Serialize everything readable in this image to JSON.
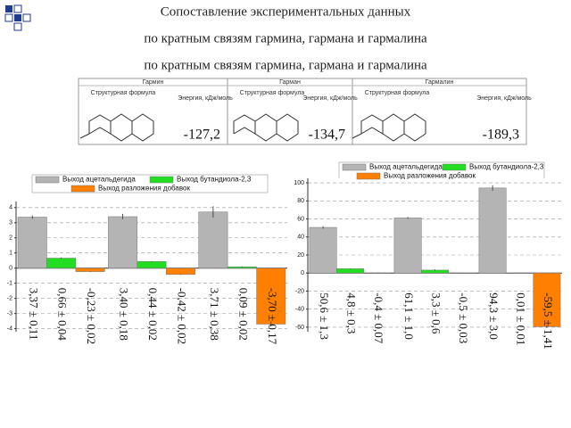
{
  "header": {
    "title": [
      "Сопоставление экспериментальных данных",
      "по кратным связям гармина, гармана и гармалина",
      "по кратным связям гармина, гармана и гармалина"
    ]
  },
  "table": {
    "columns": [
      {
        "name": "Гармин",
        "formula": "Структурная формула",
        "energy_label": "Энергия, кДж/моль",
        "energy": "-127,2"
      },
      {
        "name": "Гарман",
        "formula": "Структурная формула",
        "energy_label": "Энергия, кДж/моль",
        "energy": "-134,7"
      },
      {
        "name": "Гармалин",
        "formula": "Структурная формула",
        "energy_label": "Энергия, кДж/моль",
        "energy": "-189,3"
      }
    ]
  },
  "chart_data": [
    {
      "type": "bar",
      "categories": [
        null,
        null,
        null
      ],
      "ylim": [
        -4.2,
        4.4
      ],
      "yticks": [
        4,
        3,
        2,
        1,
        0,
        -1,
        -2,
        -3,
        -4
      ],
      "grid": true,
      "series": [
        {
          "name": "Выход ацетальдегида",
          "color": "#b4b4b4",
          "values": [
            3.37,
            3.4,
            3.71
          ],
          "errors": [
            0.11,
            0.18,
            0.38
          ],
          "value_labels": [
            "3,37 ± 0,11",
            "3,40 ± 0,18",
            "3,71 ± 0,38"
          ]
        },
        {
          "name": "Выход бутандиола-2,3",
          "color": "#22dd22",
          "values": [
            0.66,
            0.44,
            0.09
          ],
          "errors": [
            0.04,
            0.02,
            0.02
          ],
          "value_labels": [
            "0,66 ± 0,04",
            "0,44 ± 0,02",
            "0,09 ± 0,02"
          ]
        },
        {
          "name": "Выход разложения добавок",
          "color": "#ff8000",
          "values": [
            -0.23,
            -0.42,
            -3.7
          ],
          "errors": [
            0.02,
            0.02,
            0.17
          ],
          "value_labels": [
            "-0,23 ± 0,02",
            "-0,42 ± 0,02",
            "-3,70 ± 0,17"
          ]
        }
      ]
    },
    {
      "type": "bar",
      "categories": [
        null,
        null,
        null
      ],
      "ylim": [
        -65,
        105
      ],
      "yticks": [
        100,
        80,
        60,
        40,
        20,
        0,
        -20,
        -40,
        -60
      ],
      "grid": true,
      "series": [
        {
          "name": "Выход ацетальдегида",
          "color": "#b4b4b4",
          "values": [
            50.6,
            61.1,
            94.3
          ],
          "errors": [
            1.3,
            1.0,
            3.0
          ],
          "value_labels": [
            "50,6 ± 1,3",
            "61,1 ± 1,0",
            "94,3 ± 3,0"
          ]
        },
        {
          "name": "Выход бутандиола-2,3",
          "color": "#22dd22",
          "values": [
            4.8,
            3.3,
            0.01
          ],
          "errors": [
            0.3,
            0.6,
            0.01
          ],
          "value_labels": [
            "4,8 ± 0,3",
            "3,3 ± 0,6",
            "0,01 ± 0,01"
          ]
        },
        {
          "name": "Выход разложения добавок",
          "color": "#ff8000",
          "values": [
            -0.4,
            -0.5,
            -59.5
          ],
          "errors": [
            0.07,
            0.03,
            1.41
          ],
          "value_labels": [
            "-0,4 ± 0,07",
            "-0,5 ± 0,03",
            "-59,5 ± 1,41"
          ]
        }
      ]
    }
  ]
}
